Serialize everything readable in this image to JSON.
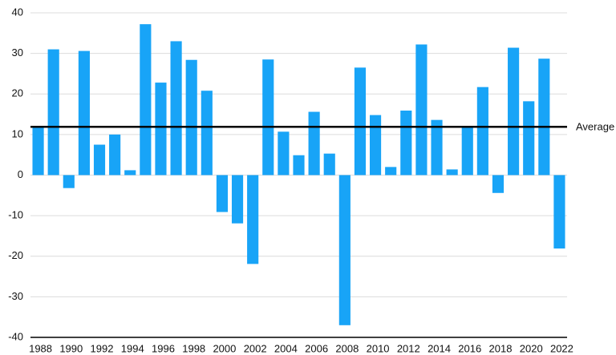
{
  "chart_data": {
    "type": "bar",
    "categories": [
      "1988",
      null,
      "1990",
      null,
      "1992",
      null,
      "1994",
      null,
      "1996",
      null,
      "1998",
      null,
      "2000",
      null,
      "2002",
      null,
      "2004",
      null,
      "2006",
      null,
      "2008",
      null,
      "2010",
      null,
      "2012",
      null,
      "2014",
      null,
      "2016",
      null,
      "2018",
      null,
      "2020",
      null,
      "2022"
    ],
    "values": [
      12,
      31,
      -3.2,
      30.6,
      7.5,
      10,
      1.2,
      37.2,
      22.8,
      33,
      28.4,
      20.8,
      -9.1,
      -11.9,
      -21.9,
      28.5,
      10.7,
      4.9,
      15.6,
      5.3,
      -37,
      26.5,
      14.8,
      2,
      15.9,
      32.2,
      13.6,
      1.4,
      12,
      21.7,
      -4.4,
      31.4,
      18.2,
      28.7,
      -18.1
    ],
    "color": "#18a4f7",
    "ylim": [
      -40,
      40
    ],
    "yticks": [
      -40,
      -30,
      -20,
      -10,
      0,
      10,
      20,
      30,
      40
    ],
    "grid": true,
    "average": {
      "value": 11.9,
      "label": "Average"
    }
  }
}
